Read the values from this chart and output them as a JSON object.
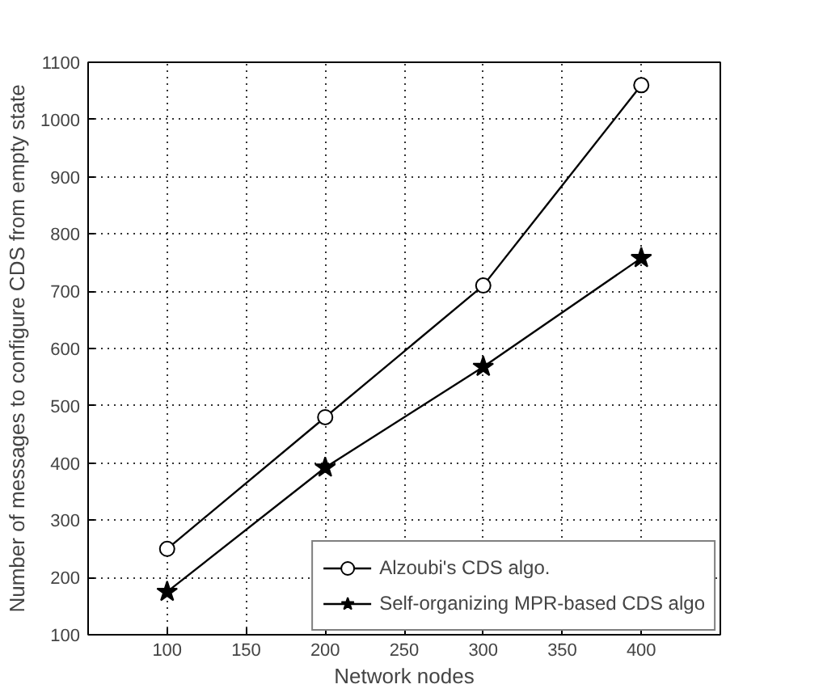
{
  "chart_data": {
    "type": "line",
    "xlabel": "Network nodes",
    "ylabel": "Number of messages to configure CDS from empty state",
    "x": [
      100,
      200,
      300,
      400
    ],
    "series": [
      {
        "name": "Alzoubi's CDS algo.",
        "color": "#000000",
        "marker": "circle",
        "values": [
          250,
          480,
          710,
          1060
        ]
      },
      {
        "name": "Self-organizing MPR-based CDS algo",
        "color": "#000000",
        "marker": "star",
        "values": [
          175,
          392,
          568,
          758
        ]
      }
    ],
    "xlim": [
      50,
      450
    ],
    "xticks": [
      100,
      150,
      200,
      250,
      300,
      350,
      400
    ],
    "ylim": [
      100,
      1100
    ],
    "yticks": [
      100,
      200,
      300,
      400,
      500,
      600,
      700,
      800,
      900,
      1000,
      1100
    ],
    "grid": true,
    "legend": "bottom right",
    "line_style": "solid"
  }
}
